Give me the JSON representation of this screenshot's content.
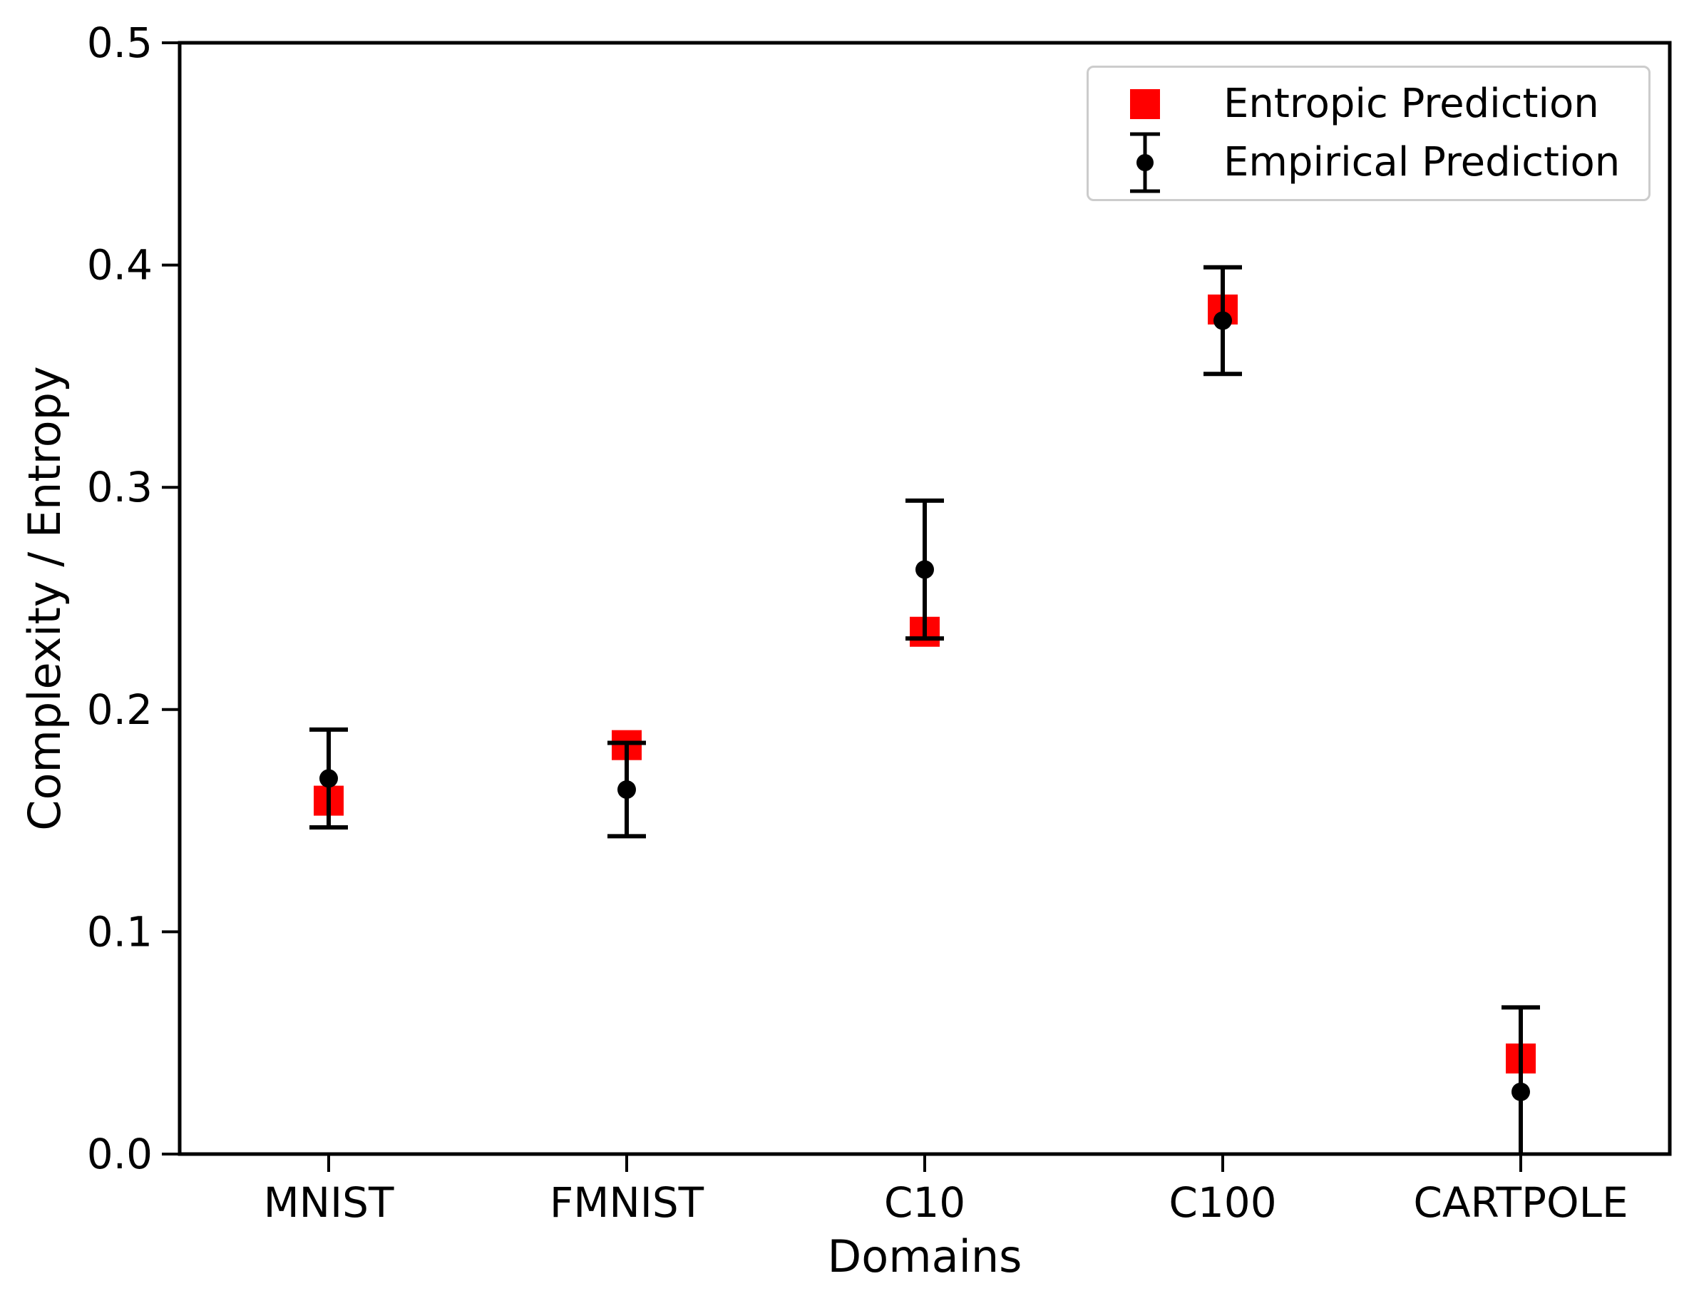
{
  "figure": {
    "background": "#ffffff"
  },
  "chart_data": {
    "type": "scatter",
    "title": "",
    "xlabel": "Domains",
    "ylabel": "Complexity / Entropy",
    "categories": [
      "MNIST",
      "FMNIST",
      "C10",
      "C100",
      "CARTPOLE"
    ],
    "ylim": [
      0.0,
      0.5
    ],
    "yticks": [
      0.0,
      0.1,
      0.2,
      0.3,
      0.4,
      0.5
    ],
    "ytick_labels": [
      "0.0",
      "0.1",
      "0.2",
      "0.3",
      "0.4",
      "0.5"
    ],
    "grid": false,
    "legend_position": "upper right",
    "axis_color": "#000000",
    "series": [
      {
        "name": "Entropic Prediction",
        "marker": "square",
        "color": "#ff0000",
        "values": [
          0.159,
          0.184,
          0.235,
          0.38,
          0.043
        ]
      },
      {
        "name": "Empirical Prediction",
        "marker": "circle-errorbar",
        "color": "#000000",
        "values": [
          0.169,
          0.164,
          0.263,
          0.375,
          0.028
        ],
        "errors": [
          0.022,
          0.021,
          0.031,
          0.024,
          0.038
        ]
      }
    ]
  }
}
